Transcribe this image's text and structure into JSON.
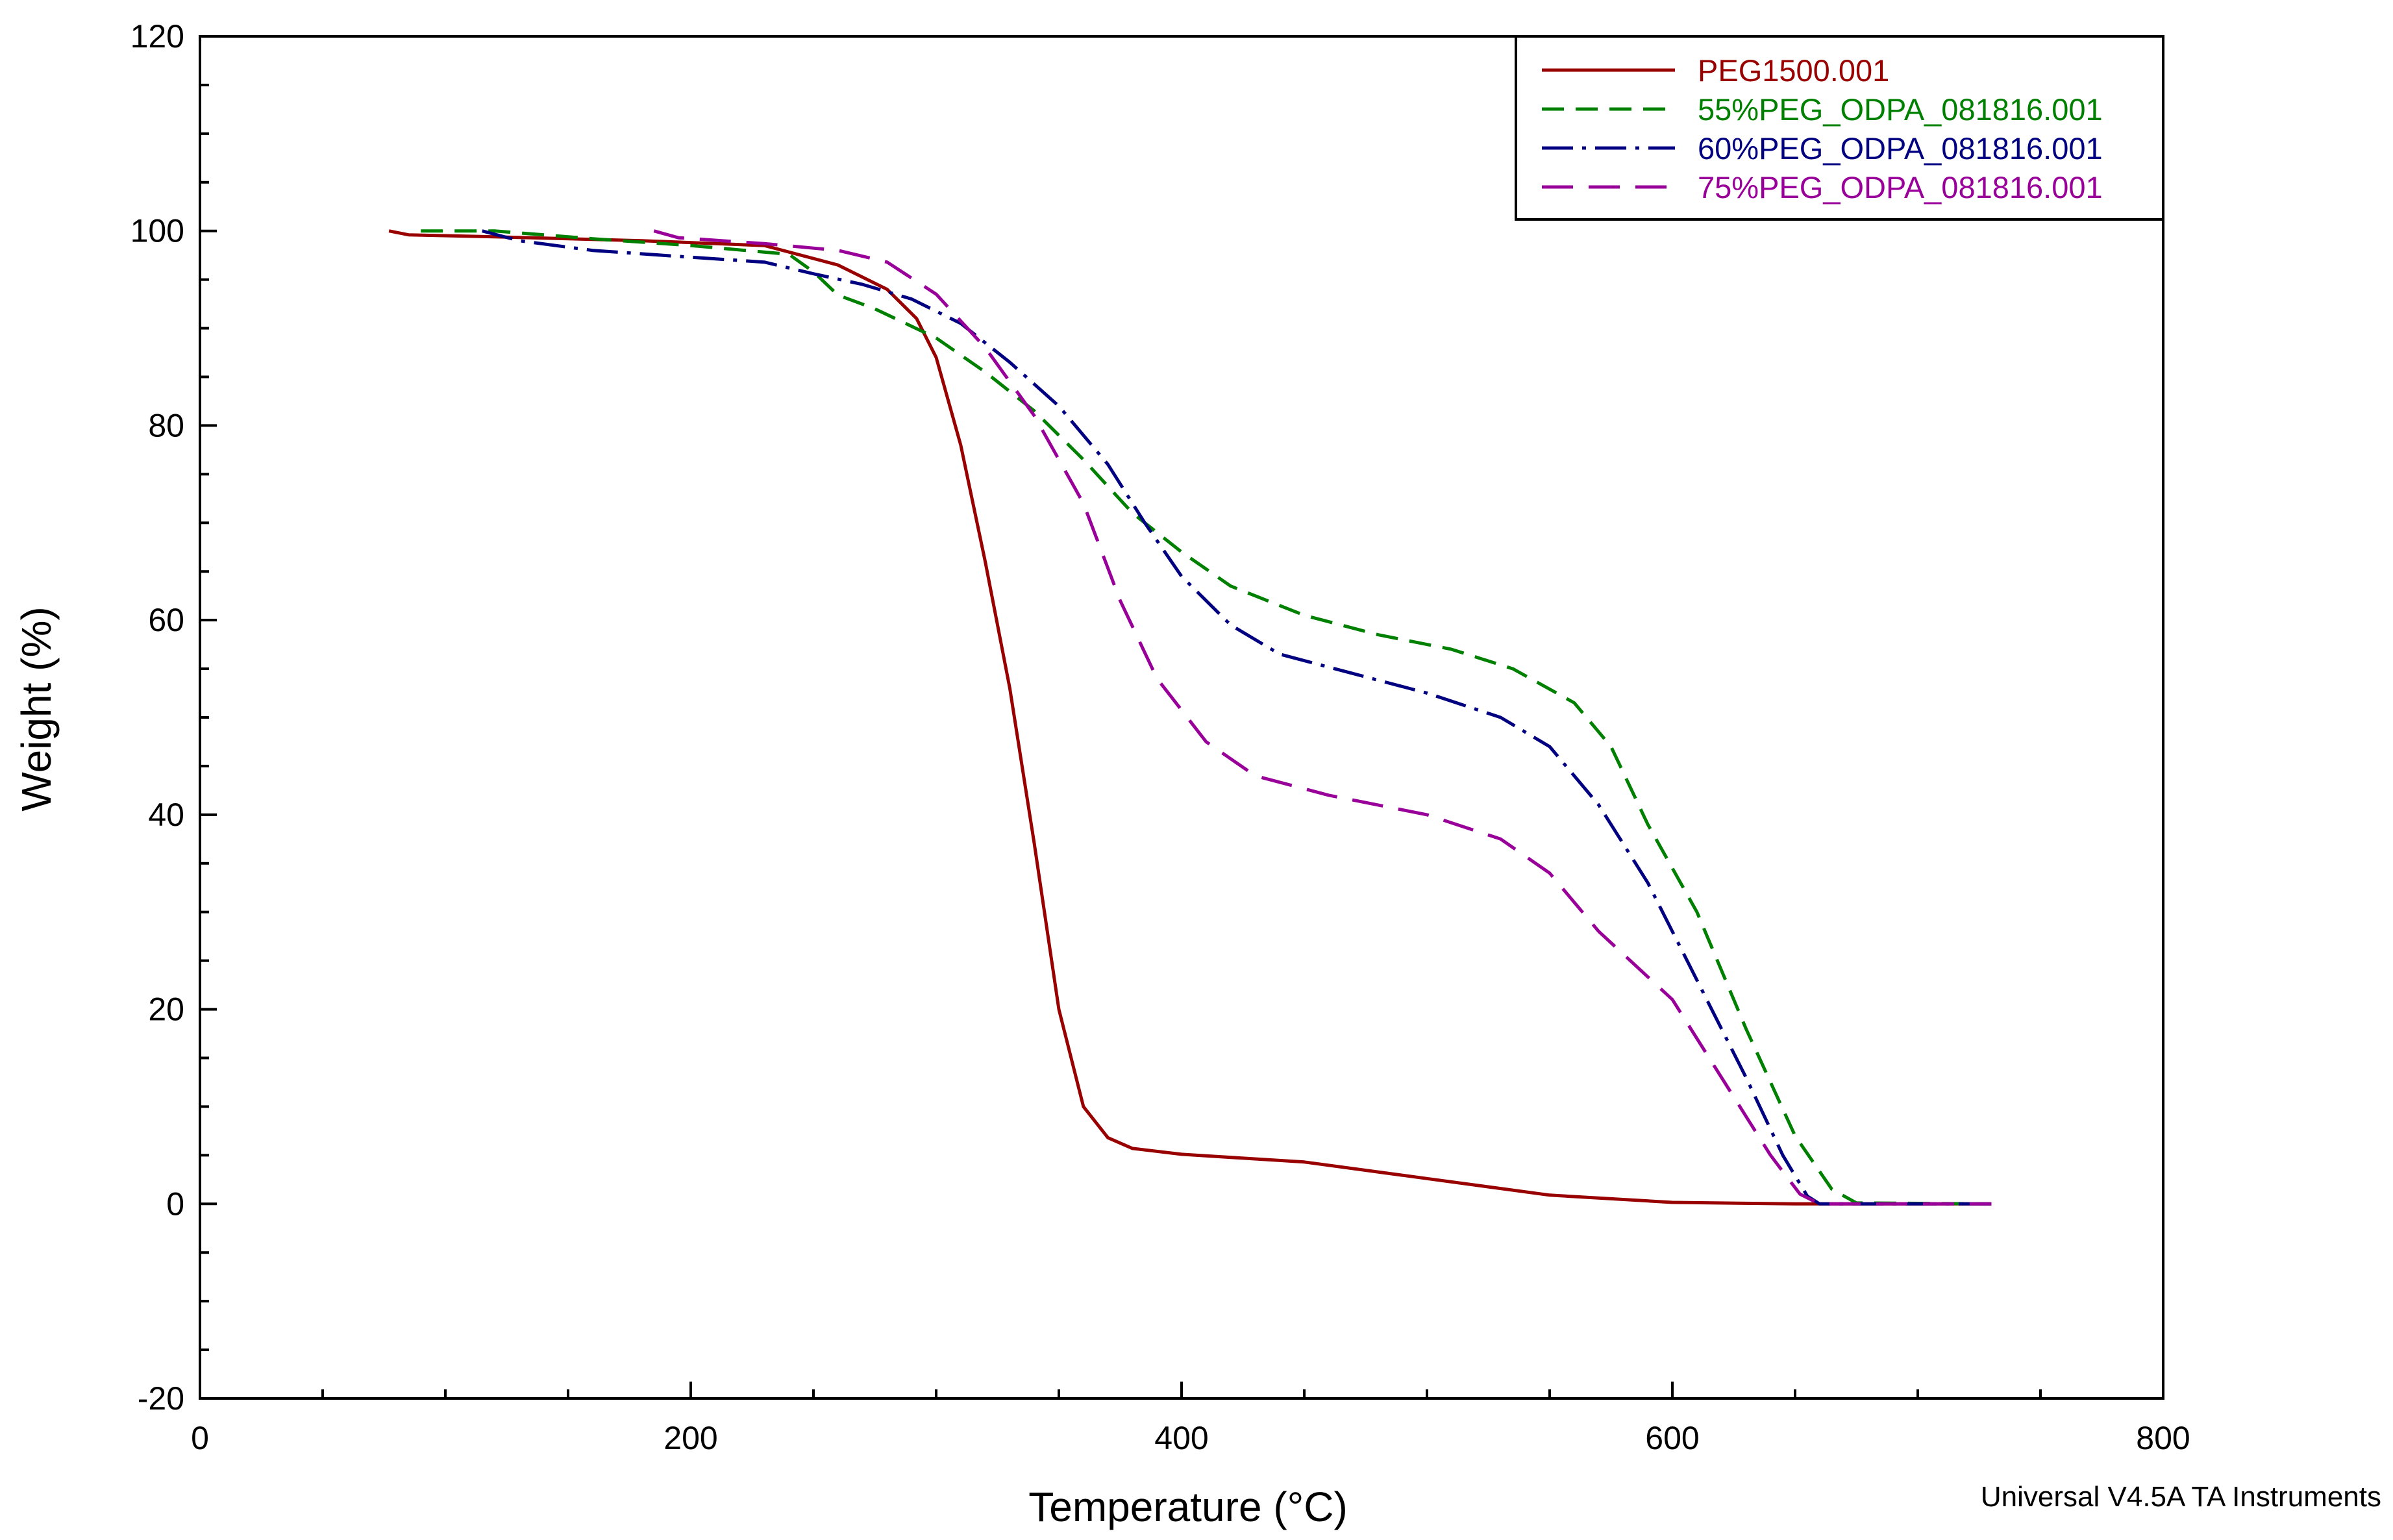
{
  "chart_data": {
    "type": "line",
    "title": "",
    "xlabel": "Temperature (°C)",
    "ylabel": "Weight (%)",
    "xlim": [
      0,
      800
    ],
    "ylim": [
      -20,
      120
    ],
    "x_ticks": [
      0,
      200,
      400,
      600,
      800
    ],
    "y_ticks": [
      -20,
      0,
      20,
      40,
      60,
      80,
      100,
      120
    ],
    "x_tick_labels": [
      "0",
      "200",
      "400",
      "600",
      "800"
    ],
    "y_tick_labels": [
      "-20",
      "0",
      "20",
      "40",
      "60",
      "80",
      "100",
      "120"
    ],
    "grid": false,
    "legend_position": "top-right",
    "footer": "Universal V4.5A TA Instruments",
    "series": [
      {
        "name": "PEG1500.001",
        "color": "#990000",
        "style": "solid",
        "points": [
          [
            77,
            100
          ],
          [
            85,
            99.6
          ],
          [
            120,
            99.4
          ],
          [
            180,
            99
          ],
          [
            230,
            98.5
          ],
          [
            260,
            96.5
          ],
          [
            280,
            94
          ],
          [
            292,
            91
          ],
          [
            300,
            87
          ],
          [
            310,
            78
          ],
          [
            320,
            66
          ],
          [
            330,
            53
          ],
          [
            340,
            37
          ],
          [
            350,
            20
          ],
          [
            360,
            10
          ],
          [
            370,
            6.8
          ],
          [
            380,
            5.7
          ],
          [
            400,
            5.1
          ],
          [
            450,
            4.3
          ],
          [
            500,
            2.6
          ],
          [
            550,
            0.9
          ],
          [
            600,
            0.15
          ],
          [
            650,
            0
          ],
          [
            730,
            0
          ]
        ]
      },
      {
        "name": "55%PEG_ODPA_081816.001",
        "color": "#008000",
        "style": "dashed",
        "points": [
          [
            90,
            100
          ],
          [
            120,
            100
          ],
          [
            160,
            99.2
          ],
          [
            200,
            98.5
          ],
          [
            240,
            97.6
          ],
          [
            250,
            95.8
          ],
          [
            260,
            93.4
          ],
          [
            275,
            92
          ],
          [
            300,
            89
          ],
          [
            320,
            85.5
          ],
          [
            340,
            81.5
          ],
          [
            360,
            76.5
          ],
          [
            380,
            71
          ],
          [
            400,
            67
          ],
          [
            420,
            63.5
          ],
          [
            450,
            60.5
          ],
          [
            480,
            58.5
          ],
          [
            510,
            57
          ],
          [
            535,
            55
          ],
          [
            560,
            51.5
          ],
          [
            575,
            47
          ],
          [
            590,
            39
          ],
          [
            610,
            30
          ],
          [
            630,
            18
          ],
          [
            650,
            7
          ],
          [
            665,
            1.5
          ],
          [
            675,
            0.1
          ],
          [
            730,
            0
          ]
        ]
      },
      {
        "name": "60%PEG_ODPA_081816.001",
        "color": "#000080",
        "style": "dashdot",
        "points": [
          [
            115,
            100
          ],
          [
            130,
            99
          ],
          [
            160,
            98
          ],
          [
            200,
            97.3
          ],
          [
            230,
            96.8
          ],
          [
            250,
            95.6
          ],
          [
            270,
            94.5
          ],
          [
            290,
            93
          ],
          [
            310,
            90.5
          ],
          [
            330,
            86.5
          ],
          [
            350,
            82
          ],
          [
            370,
            76
          ],
          [
            385,
            70
          ],
          [
            400,
            64.5
          ],
          [
            420,
            59.5
          ],
          [
            440,
            56.5
          ],
          [
            470,
            54.5
          ],
          [
            500,
            52.5
          ],
          [
            530,
            50
          ],
          [
            550,
            47
          ],
          [
            570,
            41
          ],
          [
            590,
            33
          ],
          [
            610,
            23
          ],
          [
            630,
            13
          ],
          [
            645,
            5
          ],
          [
            655,
            0.8
          ],
          [
            660,
            0
          ],
          [
            730,
            0
          ]
        ]
      },
      {
        "name": "75%PEG_ODPA_081816.001",
        "color": "#990099",
        "style": "longdash",
        "points": [
          [
            185,
            100
          ],
          [
            195,
            99.3
          ],
          [
            230,
            98.7
          ],
          [
            260,
            98
          ],
          [
            280,
            96.8
          ],
          [
            300,
            93.5
          ],
          [
            320,
            88
          ],
          [
            340,
            81
          ],
          [
            360,
            72
          ],
          [
            375,
            62
          ],
          [
            390,
            54
          ],
          [
            410,
            47.5
          ],
          [
            430,
            44
          ],
          [
            460,
            42
          ],
          [
            500,
            40
          ],
          [
            530,
            37.5
          ],
          [
            550,
            34
          ],
          [
            570,
            28
          ],
          [
            600,
            21
          ],
          [
            620,
            13
          ],
          [
            640,
            5
          ],
          [
            652,
            1
          ],
          [
            660,
            0
          ],
          [
            730,
            0
          ]
        ]
      }
    ]
  }
}
